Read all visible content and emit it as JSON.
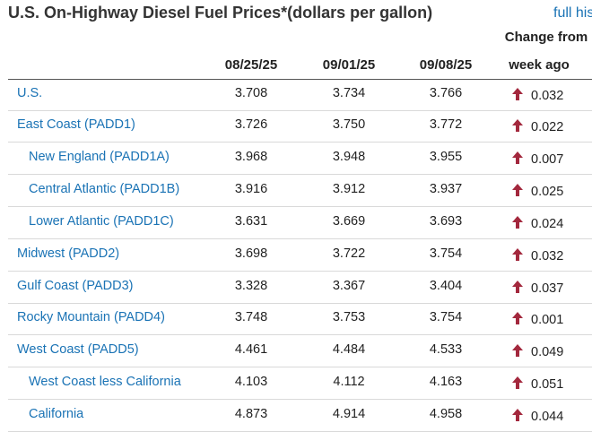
{
  "title": "U.S. On-Highway Diesel Fuel Prices*(dollars per gallon)",
  "full_link": "full his",
  "columns": {
    "date1": "08/25/25",
    "date2": "09/01/25",
    "date3": "09/08/25",
    "change_line1": "Change from",
    "change_line2": "week ago"
  },
  "colors": {
    "link": "#1a73b5",
    "up_arrow": "#a3283d"
  },
  "rows": [
    {
      "region": "U.S.",
      "v1": "3.708",
      "v2": "3.734",
      "v3": "3.766",
      "change": "0.032",
      "direction": "up"
    },
    {
      "region": "East Coast (PADD1)",
      "v1": "3.726",
      "v2": "3.750",
      "v3": "3.772",
      "change": "0.022",
      "direction": "up"
    },
    {
      "region": "New England (PADD1A)",
      "v1": "3.968",
      "v2": "3.948",
      "v3": "3.955",
      "change": "0.007",
      "direction": "up"
    },
    {
      "region": "Central Atlantic (PADD1B)",
      "v1": "3.916",
      "v2": "3.912",
      "v3": "3.937",
      "change": "0.025",
      "direction": "up"
    },
    {
      "region": "Lower Atlantic (PADD1C)",
      "v1": "3.631",
      "v2": "3.669",
      "v3": "3.693",
      "change": "0.024",
      "direction": "up"
    },
    {
      "region": "Midwest (PADD2)",
      "v1": "3.698",
      "v2": "3.722",
      "v3": "3.754",
      "change": "0.032",
      "direction": "up"
    },
    {
      "region": "Gulf Coast (PADD3)",
      "v1": "3.328",
      "v2": "3.367",
      "v3": "3.404",
      "change": "0.037",
      "direction": "up"
    },
    {
      "region": "Rocky Mountain (PADD4)",
      "v1": "3.748",
      "v2": "3.753",
      "v3": "3.754",
      "change": "0.001",
      "direction": "up"
    },
    {
      "region": "West Coast (PADD5)",
      "v1": "4.461",
      "v2": "4.484",
      "v3": "4.533",
      "change": "0.049",
      "direction": "up"
    },
    {
      "region": "West Coast less California",
      "v1": "4.103",
      "v2": "4.112",
      "v3": "4.163",
      "change": "0.051",
      "direction": "up"
    },
    {
      "region": "California",
      "v1": "4.873",
      "v2": "4.914",
      "v3": "4.958",
      "change": "0.044",
      "direction": "up"
    }
  ]
}
